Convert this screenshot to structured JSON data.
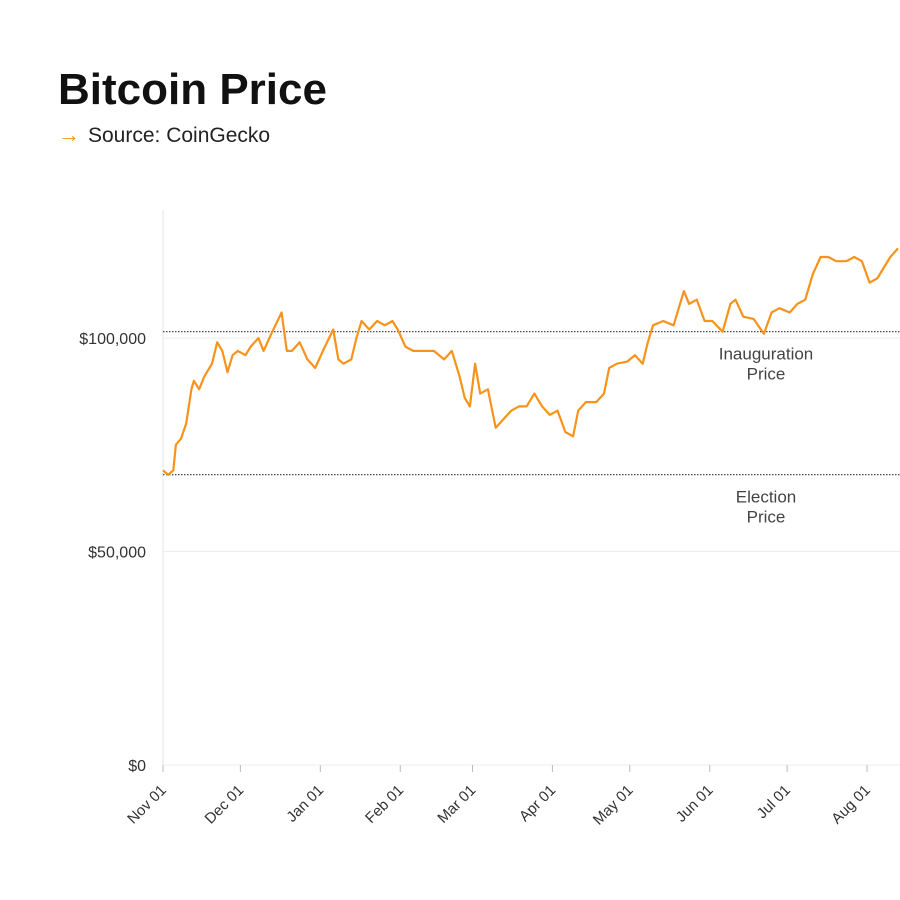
{
  "chart_data": {
    "type": "line",
    "title": "Bitcoin Price",
    "subtitle": "Source: CoinGecko",
    "x": [
      "Nov 01",
      "Nov 03",
      "Nov 05",
      "Nov 06",
      "Nov 08",
      "Nov 10",
      "Nov 12",
      "Nov 13",
      "Nov 15",
      "Nov 17",
      "Nov 20",
      "Nov 22",
      "Nov 24",
      "Nov 26",
      "Nov 28",
      "Nov 30",
      "Dec 03",
      "Dec 05",
      "Dec 08",
      "Dec 10",
      "Dec 13",
      "Dec 17",
      "Dec 19",
      "Dec 21",
      "Dec 24",
      "Dec 27",
      "Dec 30",
      "Jan 02",
      "Jan 06",
      "Jan 08",
      "Jan 10",
      "Jan 13",
      "Jan 15",
      "Jan 17",
      "Jan 20",
      "Jan 23",
      "Jan 26",
      "Jan 29",
      "Jan 31",
      "Feb 03",
      "Feb 06",
      "Feb 10",
      "Feb 14",
      "Feb 18",
      "Feb 21",
      "Feb 24",
      "Feb 26",
      "Feb 28",
      "Mar 02",
      "Mar 04",
      "Mar 07",
      "Mar 10",
      "Mar 13",
      "Mar 16",
      "Mar 19",
      "Mar 22",
      "Mar 25",
      "Mar 28",
      "Mar 31",
      "Apr 03",
      "Apr 06",
      "Apr 09",
      "Apr 11",
      "Apr 14",
      "Apr 18",
      "Apr 21",
      "Apr 23",
      "Apr 26",
      "Apr 30",
      "May 03",
      "May 06",
      "May 08",
      "May 10",
      "May 14",
      "May 18",
      "May 22",
      "May 24",
      "May 27",
      "May 30",
      "Jun 02",
      "Jun 06",
      "Jun 09",
      "Jun 11",
      "Jun 14",
      "Jun 18",
      "Jun 22",
      "Jun 25",
      "Jun 28",
      "Jul 02",
      "Jul 05",
      "Jul 08",
      "Jul 11",
      "Jul 14",
      "Jul 17",
      "Jul 20",
      "Jul 24",
      "Jul 27",
      "Jul 30",
      "Aug 02",
      "Aug 05",
      "Aug 08",
      "Aug 10",
      "Aug 13"
    ],
    "series": [
      {
        "name": "Bitcoin",
        "color": "#f7931a",
        "values": [
          69000,
          68000,
          69000,
          75000,
          76500,
          80000,
          88000,
          90000,
          88000,
          91000,
          94000,
          99000,
          97000,
          92000,
          96000,
          97000,
          96000,
          98000,
          100000,
          97000,
          101000,
          106000,
          97000,
          97000,
          99000,
          95000,
          93000,
          97000,
          102000,
          95000,
          94000,
          95000,
          100000,
          104000,
          102000,
          104000,
          103000,
          104000,
          102000,
          98000,
          97000,
          97000,
          97000,
          95000,
          97000,
          91000,
          86000,
          84000,
          94000,
          87000,
          88000,
          79000,
          81000,
          83000,
          84000,
          84000,
          87000,
          84000,
          82000,
          83000,
          78000,
          77000,
          83000,
          85000,
          85000,
          87000,
          93000,
          94000,
          94500,
          96000,
          94000,
          99000,
          103000,
          104000,
          103000,
          111000,
          108000,
          109000,
          104000,
          104000,
          101500,
          108000,
          109000,
          105000,
          104500,
          101000,
          106000,
          107000,
          106000,
          108000,
          109000,
          115000,
          119000,
          119000,
          118000,
          118000,
          119000,
          118000,
          113000,
          114000,
          117000,
          119000,
          121000
        ]
      }
    ],
    "xlim": [
      "Nov 01",
      "Aug 13"
    ],
    "xticks": [
      "Nov 01",
      "Dec 01",
      "Jan 01",
      "Feb 01",
      "Mar 01",
      "Apr 01",
      "May 01",
      "Jun 01",
      "Jul 01",
      "Aug 01"
    ],
    "ylim": [
      0,
      130000
    ],
    "yticks": [
      {
        "value": 0,
        "label": "$0"
      },
      {
        "value": 50000,
        "label": "$50,000"
      },
      {
        "value": 100000,
        "label": "$100,000"
      }
    ],
    "grid": true,
    "reference_lines": [
      {
        "value": 101500,
        "label": [
          "Inauguration",
          "Price"
        ]
      },
      {
        "value": 68000,
        "label": [
          "Election",
          "Price"
        ]
      }
    ]
  }
}
